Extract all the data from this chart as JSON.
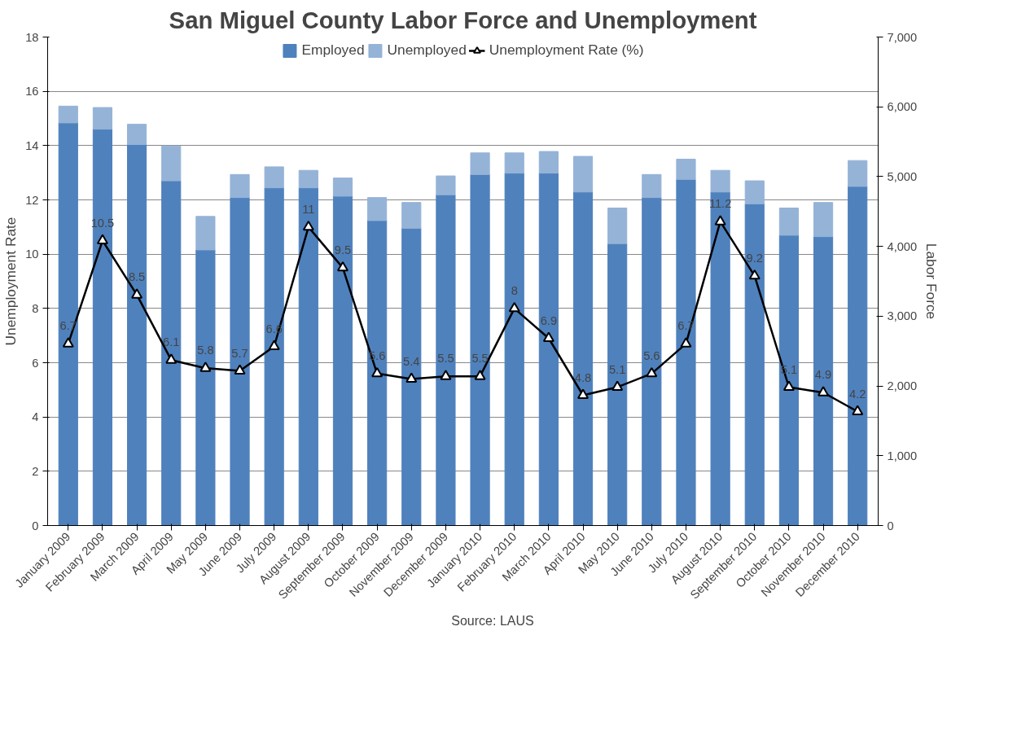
{
  "chart_data": {
    "type": "bar",
    "title": "San Miguel County Labor Force and Unemployment",
    "ylabel": "Unemployment Rate",
    "y2label": "Labor Force",
    "annotations": [
      "Source: LAUS"
    ],
    "categories": [
      "January 2009",
      "February 2009",
      "March 2009",
      "April 2009",
      "May 2009",
      "June 2009",
      "July 2009",
      "August 2009",
      "September 2009",
      "October 2009",
      "November 2009",
      "December 2009",
      "January 2010",
      "February 2010",
      "March 2010",
      "April 2010",
      "May 2010",
      "June 2010",
      "July 2010",
      "August 2010",
      "September 2010",
      "October 2010",
      "November 2010",
      "December 2010"
    ],
    "stacked": true,
    "series": [
      {
        "name": "Employed",
        "axis": "y2",
        "color": "#4f81bd",
        "values": [
          5770,
          5680,
          5460,
          4940,
          3950,
          4700,
          4840,
          4840,
          4720,
          4370,
          4260,
          4740,
          5030,
          5050,
          5050,
          4780,
          4040,
          4700,
          4960,
          4780,
          4610,
          4160,
          4140,
          4860
        ]
      },
      {
        "name": "Unemployed",
        "axis": "y2",
        "color": "#95b3d7",
        "values": [
          240,
          310,
          290,
          500,
          480,
          330,
          300,
          250,
          260,
          330,
          370,
          270,
          310,
          290,
          310,
          510,
          510,
          330,
          290,
          310,
          330,
          390,
          490,
          370
        ]
      },
      {
        "name": "Unemployment Rate (%)",
        "type": "line",
        "color": "#000000",
        "marker": "triangle",
        "data_labels": true,
        "values": [
          6.7,
          10.5,
          8.5,
          6.1,
          5.8,
          5.7,
          6.6,
          11,
          9.5,
          5.6,
          5.4,
          5.5,
          5.5,
          8,
          6.9,
          4.8,
          5.1,
          5.6,
          6.7,
          11.2,
          9.2,
          5.1,
          4.9,
          4.2
        ]
      }
    ],
    "ylim": [
      0,
      18
    ],
    "yticks": [
      0,
      2,
      4,
      6,
      8,
      10,
      12,
      14,
      16,
      18
    ],
    "y2lim": [
      0,
      7000
    ],
    "y2ticks": [
      0,
      {
        "value": 1000,
        "label": "1,000"
      },
      {
        "value": 2000,
        "label": "2,000"
      },
      {
        "value": 3000,
        "label": "3,000"
      },
      {
        "value": 4000,
        "label": "4,000"
      },
      {
        "value": 5000,
        "label": "5,000"
      },
      {
        "value": 6000,
        "label": "6,000"
      },
      {
        "value": 7000,
        "label": "7,000"
      }
    ],
    "grid": "y",
    "legend": "top"
  }
}
